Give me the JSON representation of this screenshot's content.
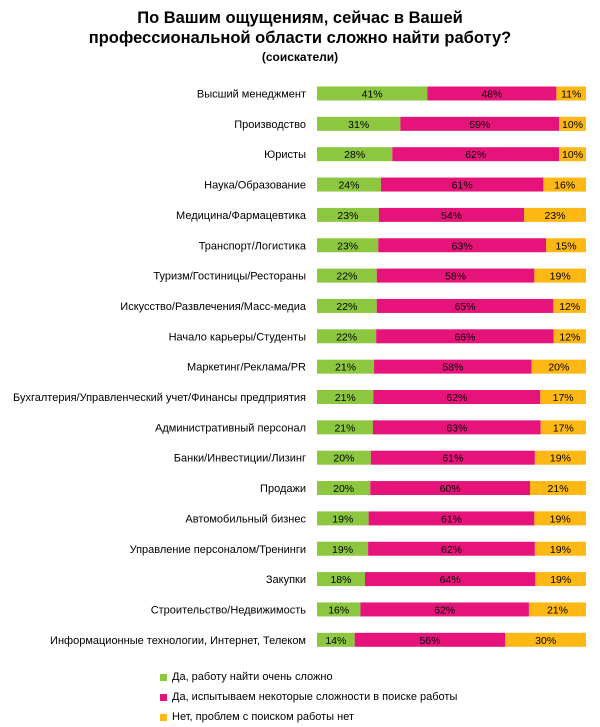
{
  "chart_data": {
    "type": "bar",
    "stacked": true,
    "orientation": "horizontal",
    "normalized_percent": true,
    "title": "По Вашим ощущениям, сейчас в Вашей профессиональной области сложно найти работу?",
    "title_line1": "По Вашим ощущениям, сейчас в Вашей",
    "title_line2": "профессиональной области сложно найти работу?",
    "subtitle": "(соискатели)",
    "categories": [
      "Высший менеджмент",
      "Производство",
      "Юристы",
      "Наука/Образование",
      "Медицина/Фармацевтика",
      "Транспорт/Логистика",
      "Туризм/Гостиницы/Рестораны",
      "Искусство/Развлечения/Масс-медиа",
      "Начало карьеры/Студенты",
      "Маркетинг/Реклама/PR",
      "Бухгалтерия/Управленческий учет/Финансы предприятия",
      "Административный персонал",
      "Банки/Инвестиции/Лизинг",
      "Продажи",
      "Автомобильный бизнес",
      "Управление персоналом/Тренинги",
      "Закупки",
      "Строительство/Недвижимость",
      "Информационные технологии, Интернет, Телеком"
    ],
    "series": [
      {
        "name": "Да, работу найти очень сложно",
        "color": "#8DC63F",
        "values": [
          41,
          31,
          28,
          24,
          23,
          23,
          22,
          22,
          22,
          21,
          21,
          21,
          20,
          20,
          19,
          19,
          18,
          16,
          14
        ]
      },
      {
        "name": "Да, испытываем некоторые сложности в поиске работы",
        "color": "#E6147A",
        "values": [
          48,
          59,
          62,
          61,
          54,
          63,
          58,
          65,
          66,
          58,
          62,
          63,
          61,
          60,
          61,
          62,
          64,
          62,
          56
        ]
      },
      {
        "name": "Нет, проблем с поиском работы нет",
        "color": "#FDB813",
        "values": [
          11,
          10,
          10,
          16,
          23,
          15,
          19,
          12,
          12,
          20,
          17,
          17,
          19,
          21,
          19,
          19,
          19,
          21,
          30
        ]
      }
    ],
    "value_suffix": "%",
    "legend_position": "bottom-left",
    "grid": false
  }
}
